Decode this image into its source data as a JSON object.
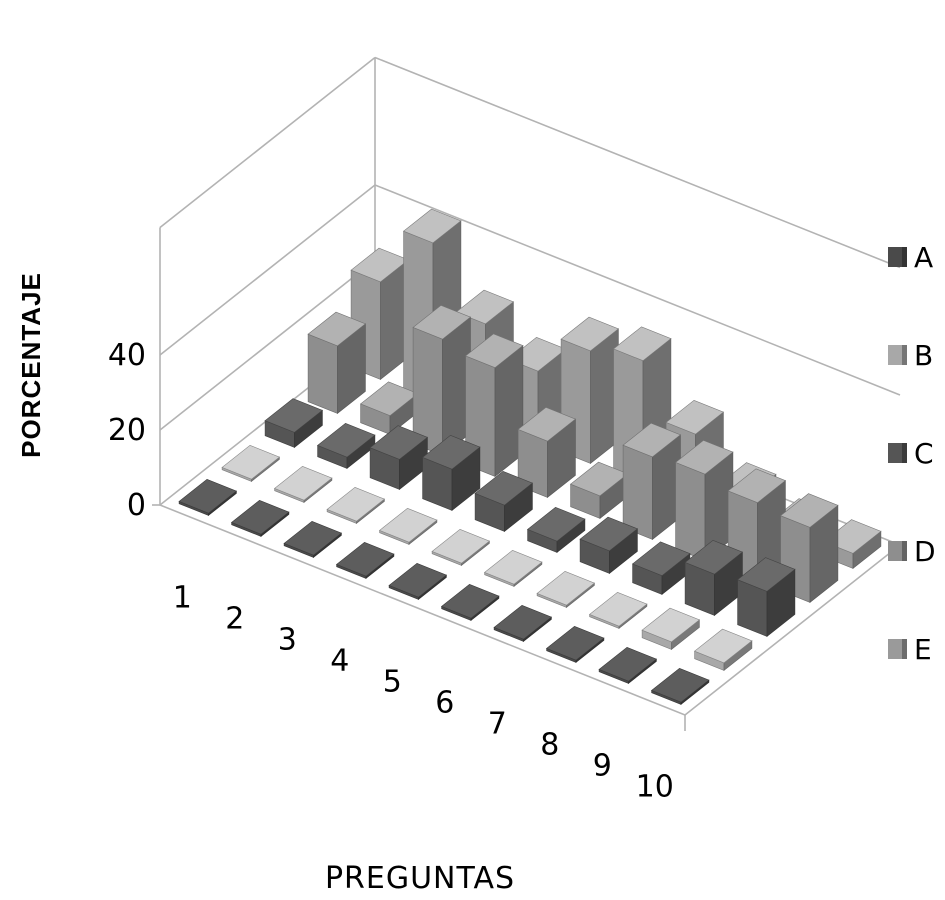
{
  "chart_data": {
    "type": "bar",
    "subtype": "3d-column",
    "title": "",
    "xlabel": "PREGUNTAS",
    "ylabel": "PORCENTAJE",
    "categories": [
      "1",
      "2",
      "3",
      "4",
      "5",
      "6",
      "7",
      "8",
      "9",
      "10"
    ],
    "ylim": [
      0,
      40
    ],
    "yticks": [
      "0",
      "20",
      "40"
    ],
    "series": [
      {
        "name": "A",
        "color": "#4a4a4a",
        "values": [
          0,
          0,
          0,
          0,
          0,
          0,
          0,
          0,
          0,
          0
        ]
      },
      {
        "name": "B",
        "color": "#a8a8a8",
        "values": [
          0,
          0,
          0,
          0,
          0,
          0,
          0,
          0,
          2,
          2
        ]
      },
      {
        "name": "C",
        "color": "#555555",
        "values": [
          4,
          3,
          8,
          11,
          7,
          3,
          6,
          5,
          11,
          12
        ]
      },
      {
        "name": "D",
        "color": "#8e8e8e",
        "values": [
          18,
          5,
          31,
          29,
          15,
          6,
          22,
          23,
          21,
          20
        ]
      },
      {
        "name": "E",
        "color": "#9a9a9a",
        "values": [
          26,
          42,
          26,
          19,
          30,
          33,
          19,
          8,
          4,
          4
        ]
      }
    ],
    "legend_position": "right",
    "grid": false
  }
}
